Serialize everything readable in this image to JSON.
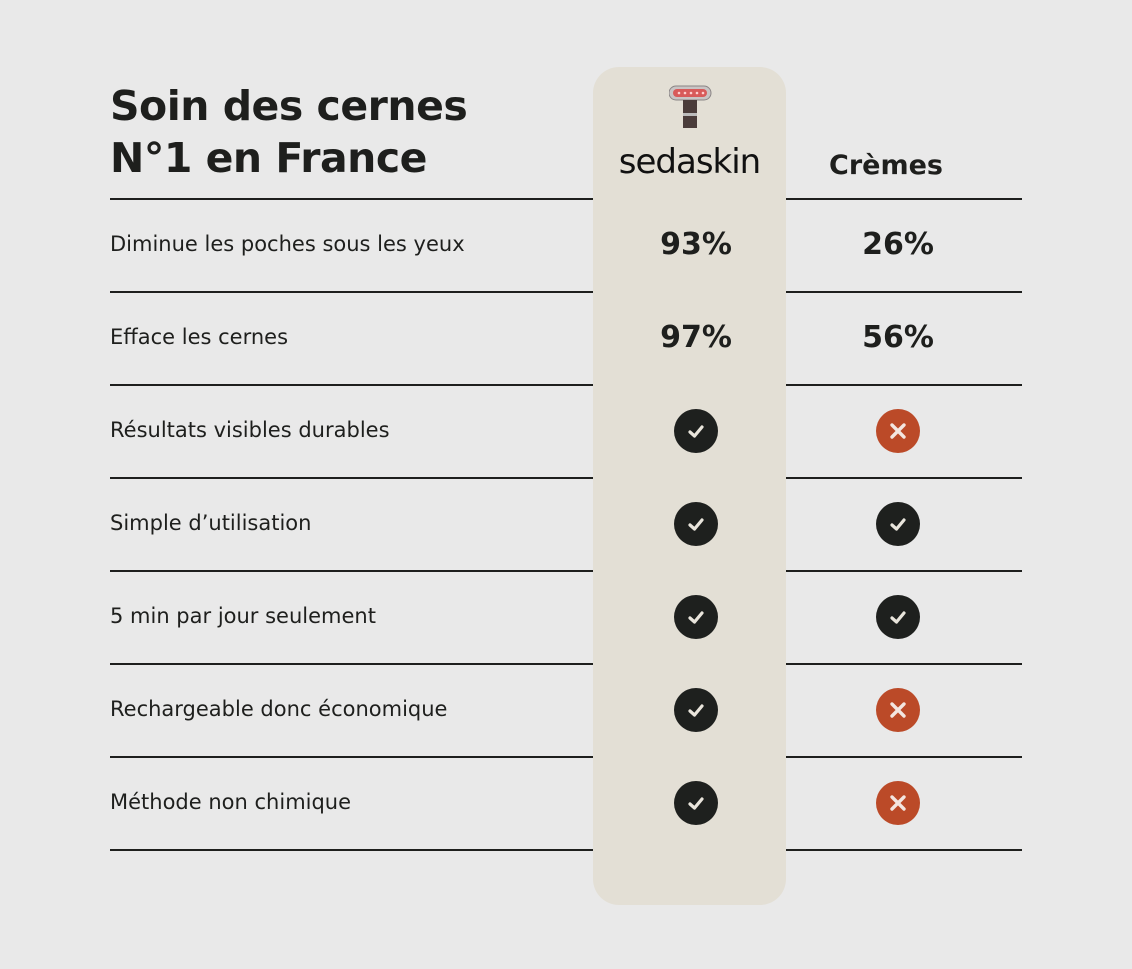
{
  "title": {
    "line1": "Soin des cernes",
    "line2": "N°1 en France"
  },
  "columns": {
    "brand": "sedaskin",
    "other": "Crèmes"
  },
  "colors": {
    "check": "#1e201e",
    "cross": "#bb4a28",
    "highlight": "#e3dfd5"
  },
  "rows": [
    {
      "label": "Diminue les poches sous les yeux",
      "brand": "93%",
      "other": "26%"
    },
    {
      "label": "Efface les cernes",
      "brand": "97%",
      "other": "56%"
    },
    {
      "label": "Résultats visibles durables",
      "brand": "check",
      "other": "cross"
    },
    {
      "label": "Simple d’utilisation",
      "brand": "check",
      "other": "check"
    },
    {
      "label": "5 min par jour seulement",
      "brand": "check",
      "other": "check"
    },
    {
      "label": "Rechargeable donc économique",
      "brand": "check",
      "other": "cross"
    },
    {
      "label": "Méthode non chimique",
      "brand": "check",
      "other": "cross"
    }
  ]
}
